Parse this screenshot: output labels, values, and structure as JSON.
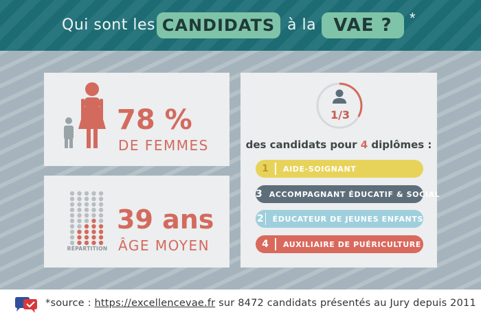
{
  "header": {
    "prefix": "Qui sont les",
    "highlight1": "CANDIDATS",
    "middle": "à la",
    "highlight2": "VAE ?",
    "asterisk": "*"
  },
  "stat_women": {
    "value": "78 %",
    "label": "DE FEMMES",
    "percent": 78
  },
  "stat_age": {
    "value": "39 ans",
    "label": "ÂGE MOYEN",
    "icon_caption": "RÉPARTITION"
  },
  "diplomas": {
    "ratio": "1/3",
    "ratio_fraction": 0.333,
    "title_before": "des candidats pour ",
    "title_number": "4",
    "title_after": " diplômes :",
    "items": [
      {
        "rank": "1",
        "label": "AIDE-SOIGNANT",
        "color": "#e8d35a",
        "text_color": "#ffffff",
        "num_color": "#b89a2a"
      },
      {
        "rank": "3",
        "label": "ACCOMPAGNANT ÉDUCATIF & SOCIAL",
        "color": "#5d6e7a",
        "text_color": "#ffffff",
        "num_color": "#ffffff"
      },
      {
        "rank": "2",
        "label": "ÉDUCATEUR DE JEUNES ENFANTS",
        "color": "#9ecfdc",
        "text_color": "#ffffff",
        "num_color": "#ffffff"
      },
      {
        "rank": "4",
        "label": "AUXILIAIRE DE PUÉRICULTURE",
        "color": "#d9695c",
        "text_color": "#ffffff",
        "num_color": "#ffffff"
      }
    ]
  },
  "footer": {
    "source_prefix": "*source : ",
    "link": "https://excellencevae.fr",
    "source_suffix": " sur 8472 candidats présentés au Jury depuis 2011"
  },
  "colors": {
    "header_bg": "#1f6f77",
    "accent_green": "#7fc4a8",
    "accent_red": "#d36a5e",
    "body_bg": "#a5b4bc",
    "card_bg": "#eceeef"
  }
}
